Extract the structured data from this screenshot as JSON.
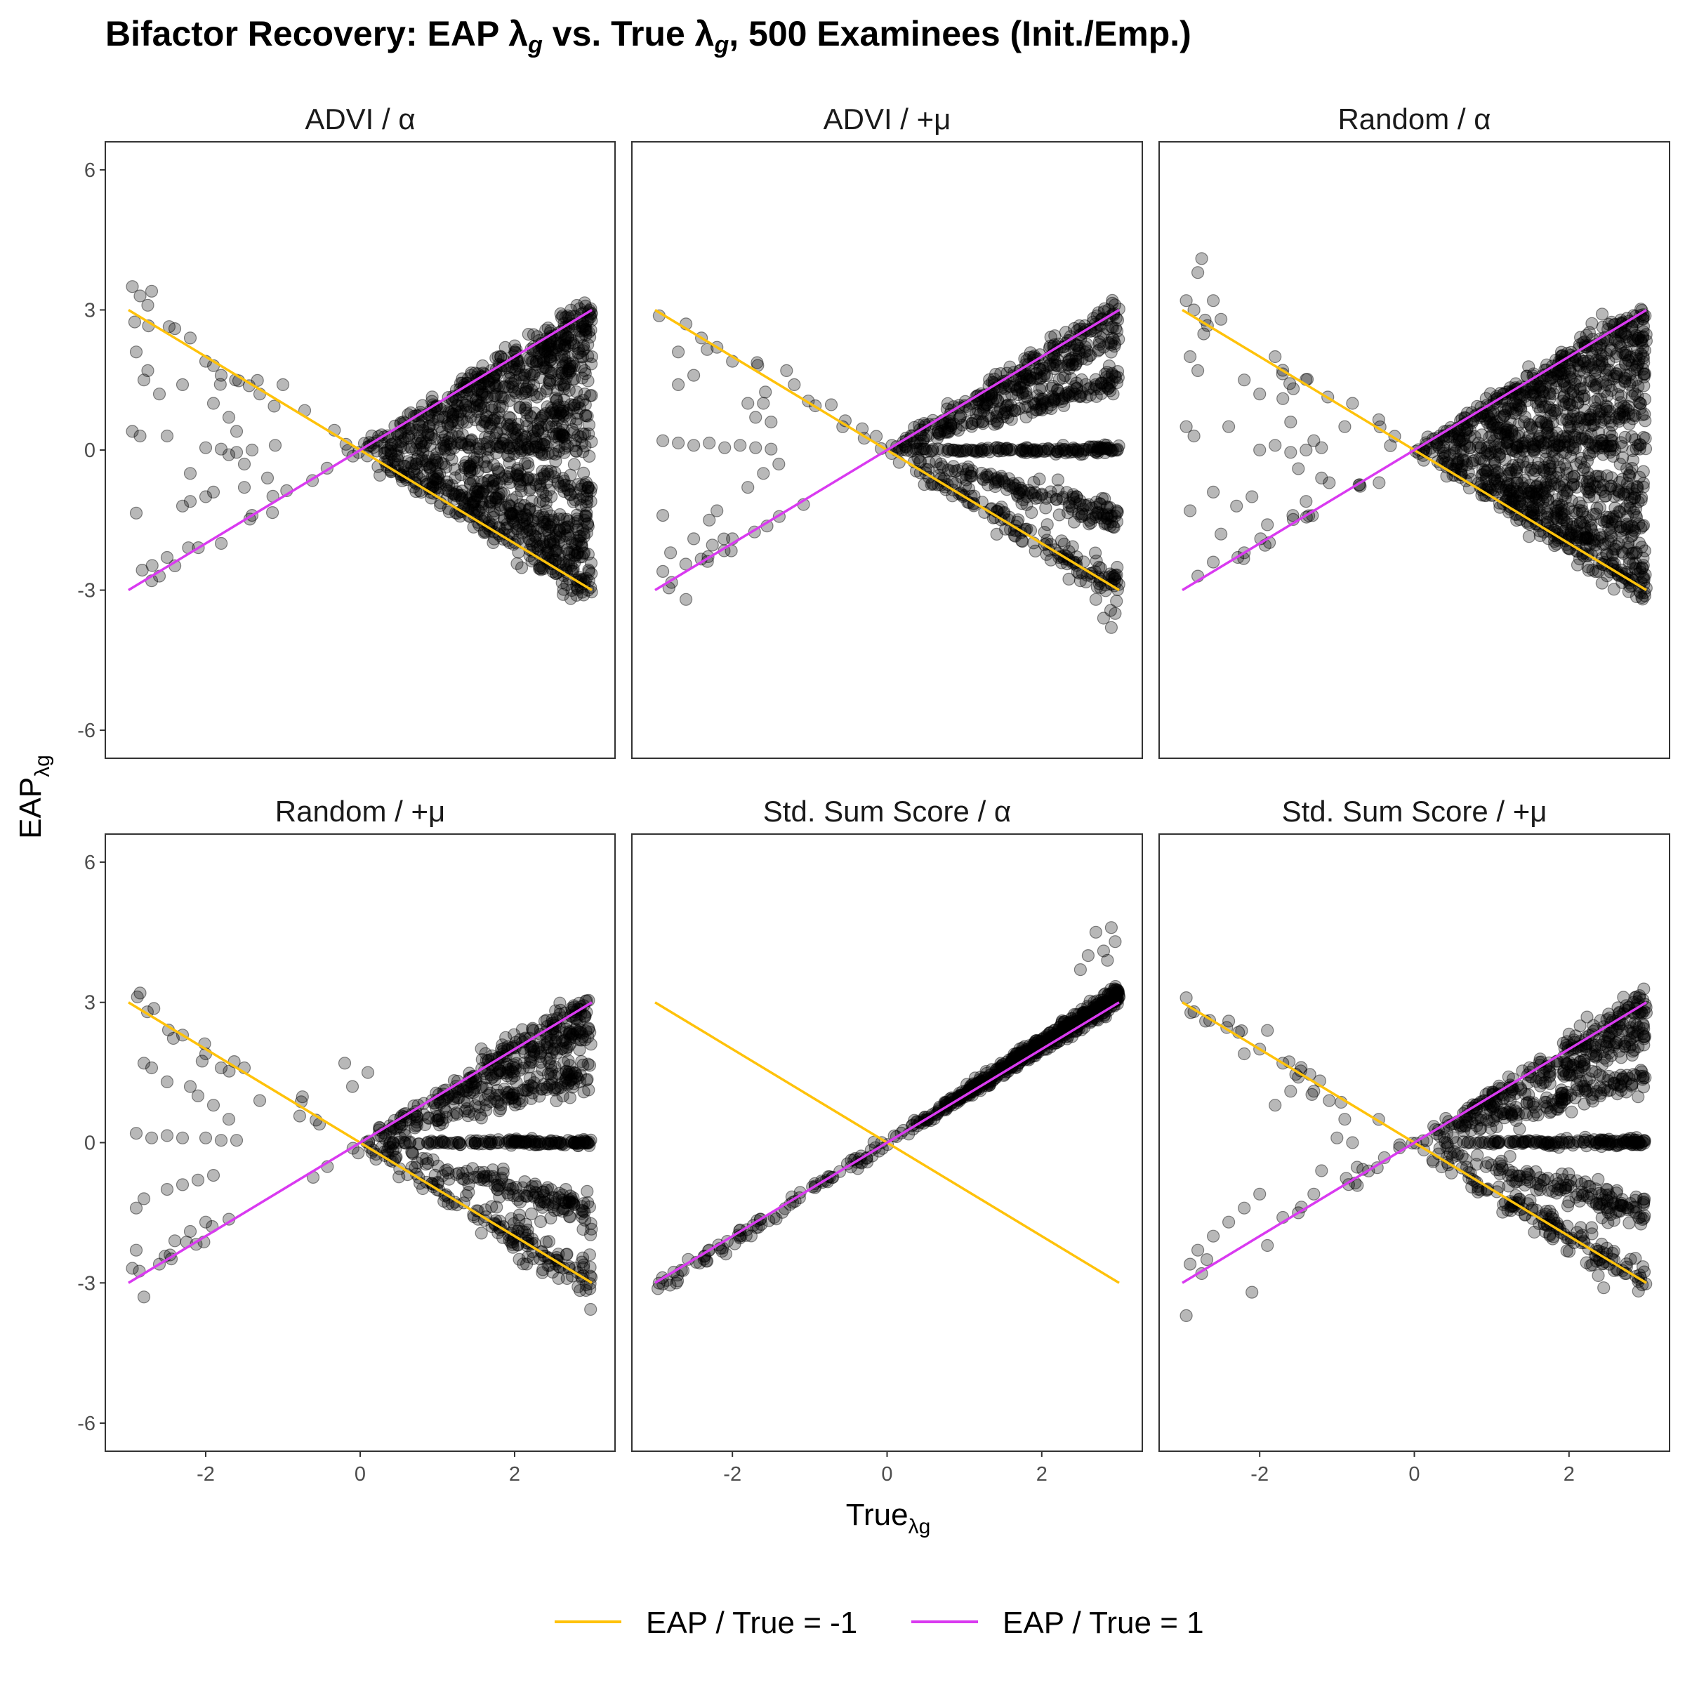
{
  "chart_data": {
    "type": "scatter",
    "title": {
      "prefix": "Bifactor Recovery: EAP λ",
      "sub1": "g",
      "middle": " vs. True λ",
      "sub2": "g",
      "suffix": ", 500 Examinees (Init./Emp.)"
    },
    "xlabel": {
      "main": "True",
      "sub": "λg"
    },
    "ylabel": {
      "main": "EAP",
      "sub": "λg"
    },
    "xlim": [
      -3.3,
      3.3
    ],
    "ylim": [
      -6.6,
      6.6
    ],
    "x_ticks": [
      -2,
      0,
      2
    ],
    "y_ticks": [
      -6,
      -3,
      0,
      3,
      6
    ],
    "tick_labels_x": [
      "-2",
      "0",
      "2"
    ],
    "tick_labels_y": [
      "-6",
      "-3",
      "0",
      "3",
      "6"
    ],
    "grid": false,
    "legend_position": "bottom",
    "reference_lines": [
      {
        "name": "EAP / True = -1",
        "slope": -1,
        "color": "#FFC20A",
        "x_range": [
          -3,
          3
        ]
      },
      {
        "name": "EAP / True = 1",
        "slope": 1,
        "color": "#D93AF0",
        "x_range": [
          -3,
          3
        ]
      }
    ],
    "point_style": {
      "color": "#000000",
      "opacity": 0.28
    },
    "panels": [
      {
        "label": "ADVI / α",
        "bands": [
          {
            "slope": 1,
            "sd": 0.13
          },
          {
            "slope": -1,
            "sd": 0.14
          },
          {
            "slope": 0.62,
            "sd": 0.16
          },
          {
            "slope": -0.6,
            "sd": 0.16
          },
          {
            "slope": 0.3,
            "sd": 0.16
          },
          {
            "slope": -0.3,
            "sd": 0.16
          },
          {
            "slope": 0.05,
            "sd": 0.12
          },
          {
            "slope": -0.8,
            "sd": 0.15
          },
          {
            "slope": 0.82,
            "sd": 0.15
          }
        ],
        "points": [
          [
            -2.95,
            3.5
          ],
          [
            -2.85,
            3.3
          ],
          [
            -2.75,
            3.1
          ],
          [
            -2.7,
            3.4
          ],
          [
            -2.9,
            2.1
          ],
          [
            -2.8,
            1.5
          ],
          [
            -2.75,
            1.7
          ],
          [
            -2.6,
            1.2
          ],
          [
            -2.95,
            0.4
          ],
          [
            -2.85,
            0.3
          ],
          [
            -2.9,
            -1.35
          ],
          [
            -2.7,
            -2.8
          ],
          [
            -2.6,
            -2.7
          ],
          [
            -2.5,
            -2.3
          ],
          [
            -2.5,
            0.3
          ],
          [
            -2.3,
            1.4
          ],
          [
            -2.4,
            2.6
          ],
          [
            -2.2,
            2.4
          ],
          [
            -2.0,
            1.9
          ],
          [
            -1.8,
            1.6
          ],
          [
            -1.9,
            1.0
          ],
          [
            -1.7,
            0.7
          ],
          [
            -1.6,
            0.4
          ],
          [
            -1.5,
            -0.3
          ],
          [
            -2.0,
            0.05
          ],
          [
            -1.8,
            0.02
          ],
          [
            -1.6,
            -0.05
          ],
          [
            -1.4,
            0.0
          ],
          [
            -2.2,
            -1.1
          ],
          [
            -2.0,
            -1.0
          ],
          [
            -1.9,
            -0.9
          ],
          [
            -2.3,
            -1.2
          ],
          [
            -1.5,
            -0.8
          ],
          [
            -1.4,
            -1.4
          ],
          [
            -1.2,
            -0.6
          ],
          [
            -1.0,
            1.4
          ],
          [
            -1.3,
            1.2
          ],
          [
            -2.2,
            -0.5
          ],
          [
            -1.7,
            -0.1
          ],
          [
            -1.1,
            0.1
          ]
        ]
      },
      {
        "label": "ADVI / +μ",
        "bands": [
          {
            "slope": 1,
            "sd": 0.12
          },
          {
            "slope": 0.0,
            "sd": 0.03
          },
          {
            "slope": -1,
            "sd": 0.16
          },
          {
            "slope": 0.5,
            "sd": 0.1
          },
          {
            "slope": -0.5,
            "sd": 0.12
          },
          {
            "slope": 0.8,
            "sd": 0.12
          }
        ],
        "points": [
          [
            -2.6,
            2.7
          ],
          [
            -2.4,
            2.4
          ],
          [
            -2.2,
            2.2
          ],
          [
            -2.0,
            1.9
          ],
          [
            -1.8,
            1.0
          ],
          [
            -1.6,
            1.0
          ],
          [
            -1.5,
            0.6
          ],
          [
            -2.7,
            1.4
          ],
          [
            -2.7,
            2.1
          ],
          [
            -2.5,
            1.6
          ],
          [
            -1.3,
            1.7
          ],
          [
            -1.2,
            1.4
          ],
          [
            -1.7,
            0.7
          ],
          [
            -2.9,
            -1.4
          ],
          [
            -2.8,
            -2.2
          ],
          [
            -2.9,
            -2.6
          ],
          [
            -2.6,
            -3.2
          ],
          [
            -2.5,
            -1.9
          ],
          [
            -2.3,
            -1.5
          ],
          [
            -2.2,
            -1.3
          ],
          [
            -2.0,
            -1.9
          ],
          [
            -1.8,
            -0.8
          ],
          [
            -1.6,
            -0.5
          ],
          [
            -1.4,
            -0.3
          ],
          [
            -2.9,
            0.2
          ],
          [
            -2.7,
            0.15
          ],
          [
            -2.5,
            0.1
          ],
          [
            -2.3,
            0.15
          ],
          [
            -2.1,
            0.05
          ],
          [
            -1.9,
            0.1
          ],
          [
            -1.7,
            0.05
          ],
          [
            -1.5,
            0.02
          ],
          [
            2.5,
            -2.8
          ],
          [
            2.8,
            -3.6
          ],
          [
            2.9,
            -3.8
          ],
          [
            2.7,
            -3.2
          ],
          [
            2.95,
            -3.5
          ]
        ]
      },
      {
        "label": "Random / α",
        "bands": [
          {
            "slope": 1,
            "sd": 0.13
          },
          {
            "slope": -1,
            "sd": 0.14
          },
          {
            "slope": 0.6,
            "sd": 0.17
          },
          {
            "slope": -0.6,
            "sd": 0.17
          },
          {
            "slope": 0.3,
            "sd": 0.15
          },
          {
            "slope": -0.3,
            "sd": 0.16
          },
          {
            "slope": 0.05,
            "sd": 0.12
          },
          {
            "slope": -0.82,
            "sd": 0.15
          },
          {
            "slope": 0.82,
            "sd": 0.15
          }
        ],
        "points": [
          [
            -2.75,
            4.1
          ],
          [
            -2.8,
            3.8
          ],
          [
            -2.95,
            3.2
          ],
          [
            -2.85,
            3.0
          ],
          [
            -2.6,
            3.2
          ],
          [
            -2.5,
            2.8
          ],
          [
            -2.9,
            2.0
          ],
          [
            -2.8,
            1.7
          ],
          [
            -2.95,
            0.5
          ],
          [
            -2.85,
            0.3
          ],
          [
            -2.9,
            -1.3
          ],
          [
            -2.5,
            -1.8
          ],
          [
            -2.3,
            -1.2
          ],
          [
            -2.1,
            -1.0
          ],
          [
            -2.6,
            -0.9
          ],
          [
            -2.4,
            0.5
          ],
          [
            -2.2,
            1.5
          ],
          [
            -2.0,
            1.2
          ],
          [
            -1.8,
            2.0
          ],
          [
            -1.7,
            1.1
          ],
          [
            -1.6,
            0.6
          ],
          [
            -1.5,
            -0.4
          ],
          [
            -1.4,
            -1.1
          ],
          [
            -1.3,
            0.2
          ],
          [
            -1.2,
            -0.6
          ],
          [
            -1.1,
            -0.7
          ],
          [
            -0.9,
            0.5
          ],
          [
            -0.8,
            1.0
          ],
          [
            -2.8,
            -2.7
          ],
          [
            -2.6,
            -2.4
          ],
          [
            -2.2,
            -2.2
          ],
          [
            -1.9,
            -1.6
          ],
          [
            -2.0,
            0.0
          ],
          [
            -1.8,
            0.1
          ],
          [
            -1.6,
            -0.05
          ],
          [
            -1.4,
            0.0
          ],
          [
            -1.2,
            0.05
          ]
        ]
      },
      {
        "label": "Random / +μ",
        "bands": [
          {
            "slope": 1,
            "sd": 0.13
          },
          {
            "slope": 0.0,
            "sd": 0.03
          },
          {
            "slope": -1,
            "sd": 0.17
          },
          {
            "slope": 0.5,
            "sd": 0.12
          },
          {
            "slope": -0.5,
            "sd": 0.13
          },
          {
            "slope": 0.8,
            "sd": 0.12
          }
        ],
        "points": [
          [
            -2.85,
            3.2
          ],
          [
            -2.3,
            2.3
          ],
          [
            -2.0,
            1.9
          ],
          [
            -1.8,
            1.6
          ],
          [
            -1.5,
            1.6
          ],
          [
            -2.7,
            1.6
          ],
          [
            -2.8,
            1.7
          ],
          [
            -2.5,
            1.3
          ],
          [
            -2.2,
            1.2
          ],
          [
            -2.1,
            1.0
          ],
          [
            -1.9,
            0.8
          ],
          [
            -1.3,
            0.9
          ],
          [
            -1.7,
            0.5
          ],
          [
            -2.9,
            0.2
          ],
          [
            -2.7,
            0.1
          ],
          [
            -2.5,
            0.15
          ],
          [
            -2.3,
            0.1
          ],
          [
            -2.0,
            0.1
          ],
          [
            -1.8,
            0.05
          ],
          [
            -1.6,
            0.05
          ],
          [
            -2.9,
            -1.4
          ],
          [
            -2.8,
            -1.2
          ],
          [
            -2.5,
            -1.0
          ],
          [
            -2.3,
            -0.9
          ],
          [
            -2.1,
            -0.8
          ],
          [
            -1.9,
            -0.7
          ],
          [
            -2.9,
            -2.3
          ],
          [
            -2.8,
            -3.3
          ],
          [
            -2.6,
            -2.6
          ],
          [
            -2.4,
            -2.1
          ],
          [
            -2.2,
            -1.9
          ],
          [
            -2.0,
            -1.7
          ],
          [
            -0.2,
            1.7
          ],
          [
            -0.1,
            1.2
          ],
          [
            0.1,
            1.5
          ]
        ]
      },
      {
        "label": "Std. Sum Score / α",
        "bands": [
          {
            "slope": 1.05,
            "sd": 0.08,
            "n": 620
          }
        ],
        "points": [
          [
            2.7,
            4.5
          ],
          [
            2.9,
            4.6
          ],
          [
            2.95,
            4.3
          ],
          [
            2.8,
            4.1
          ],
          [
            2.6,
            4.0
          ],
          [
            2.85,
            3.9
          ],
          [
            2.5,
            3.7
          ]
        ]
      },
      {
        "label": "Std. Sum Score / +μ",
        "bands": [
          {
            "slope": 1,
            "sd": 0.12
          },
          {
            "slope": 0.0,
            "sd": 0.03
          },
          {
            "slope": -1,
            "sd": 0.15
          },
          {
            "slope": 0.5,
            "sd": 0.12
          },
          {
            "slope": -0.5,
            "sd": 0.13
          },
          {
            "slope": 0.8,
            "sd": 0.12
          }
        ],
        "points": [
          [
            -2.95,
            3.1
          ],
          [
            -2.85,
            2.8
          ],
          [
            -2.7,
            2.6
          ],
          [
            -2.4,
            2.6
          ],
          [
            -2.2,
            1.9
          ],
          [
            -2.0,
            2.0
          ],
          [
            -1.9,
            2.4
          ],
          [
            -1.7,
            1.7
          ],
          [
            -1.5,
            1.4
          ],
          [
            -1.3,
            1.1
          ],
          [
            -1.1,
            0.9
          ],
          [
            -0.9,
            0.5
          ],
          [
            -1.8,
            0.8
          ],
          [
            -1.6,
            1.1
          ],
          [
            -1.0,
            0.1
          ],
          [
            -0.8,
            0.0
          ],
          [
            -1.2,
            -0.6
          ],
          [
            -2.0,
            -1.1
          ],
          [
            -2.2,
            -1.4
          ],
          [
            -2.4,
            -1.7
          ],
          [
            -2.6,
            -2.0
          ],
          [
            -2.8,
            -2.3
          ],
          [
            -2.9,
            -2.6
          ],
          [
            -2.95,
            -3.7
          ],
          [
            -2.75,
            -2.8
          ],
          [
            -2.1,
            -3.2
          ],
          [
            -1.9,
            -2.2
          ],
          [
            -1.7,
            -1.6
          ],
          [
            -1.5,
            -1.5
          ],
          [
            -1.3,
            -1.1
          ]
        ]
      }
    ]
  }
}
